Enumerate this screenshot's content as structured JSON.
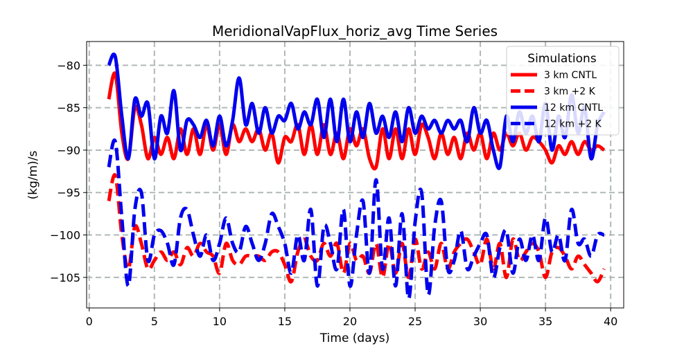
{
  "chart_data": {
    "type": "line",
    "title": "MeridionalVapFlux_horiz_avg Time Series",
    "xlabel": "Time (days)",
    "ylabel": "(kg/m)/s",
    "xlim": [
      -0.2,
      41.0
    ],
    "ylim": [
      -108.6,
      -77.2
    ],
    "xticks": [
      0,
      5,
      10,
      15,
      20,
      25,
      30,
      35,
      40
    ],
    "yticks": [
      -80,
      -85,
      -90,
      -95,
      -100,
      -105
    ],
    "grid": true,
    "legend": {
      "title": "Simulations",
      "placement": "top-right"
    },
    "series": [
      {
        "name": "3 km CNTL",
        "color": "#ff0000",
        "dash": "solid",
        "x": [
          1.5,
          2.0,
          2.5,
          3.0,
          3.5,
          4.0,
          4.5,
          5.0,
          5.5,
          6.0,
          6.5,
          7.0,
          7.5,
          8.0,
          8.5,
          9.0,
          9.5,
          10.0,
          10.5,
          11.0,
          11.5,
          12.0,
          12.5,
          13.0,
          13.5,
          14.0,
          14.5,
          15.0,
          15.5,
          16.0,
          16.5,
          17.0,
          17.5,
          18.0,
          18.5,
          19.0,
          19.5,
          20.0,
          20.5,
          21.0,
          21.5,
          22.0,
          22.5,
          23.0,
          23.5,
          24.0,
          24.5,
          25.0,
          25.5,
          26.0,
          26.5,
          27.0,
          27.5,
          28.0,
          28.5,
          29.0,
          29.5,
          30.0,
          30.5,
          31.0,
          31.5,
          32.0,
          32.5,
          33.0,
          33.5,
          34.0,
          34.5,
          35.0,
          35.5,
          36.0,
          36.5,
          37.0,
          37.5,
          38.0,
          38.5,
          39.0,
          39.5
        ],
        "y": [
          -84,
          -81,
          -88,
          -91,
          -85,
          -87,
          -91,
          -88.5,
          -90.5,
          -88.5,
          -91,
          -87.5,
          -90.5,
          -87.5,
          -90.5,
          -87,
          -90,
          -87,
          -90.5,
          -87,
          -89,
          -87.5,
          -89,
          -87.5,
          -90,
          -88,
          -91.5,
          -88.5,
          -89,
          -87,
          -90.5,
          -87,
          -90.5,
          -87,
          -90.5,
          -88,
          -91,
          -87.5,
          -89.5,
          -87.5,
          -91,
          -92,
          -87.5,
          -91,
          -87.5,
          -91,
          -87.5,
          -90.5,
          -87,
          -88.5,
          -91,
          -88,
          -90.5,
          -88.5,
          -91,
          -88,
          -90,
          -88,
          -91,
          -88,
          -90,
          -88,
          -89.5,
          -88,
          -90,
          -88.5,
          -89,
          -90,
          -91.5,
          -89.5,
          -90.5,
          -89,
          -90.5,
          -89,
          -90,
          -89.5,
          -90
        ]
      },
      {
        "name": "3 km +2 K",
        "color": "#ff0000",
        "dash": "dashed",
        "x": [
          1.5,
          2.0,
          2.5,
          3.0,
          3.5,
          4.0,
          4.5,
          5.0,
          5.5,
          6.0,
          6.5,
          7.0,
          7.5,
          8.0,
          8.5,
          9.0,
          9.5,
          10.0,
          10.5,
          11.0,
          11.5,
          12.0,
          12.5,
          13.0,
          13.5,
          14.0,
          14.5,
          15.0,
          15.5,
          16.0,
          16.5,
          17.0,
          17.5,
          18.0,
          18.5,
          19.0,
          19.5,
          20.0,
          20.5,
          21.0,
          21.5,
          22.0,
          22.5,
          23.0,
          23.5,
          24.0,
          24.5,
          25.0,
          25.5,
          26.0,
          26.5,
          27.0,
          27.5,
          28.0,
          28.5,
          29.0,
          29.5,
          30.0,
          30.5,
          31.0,
          31.5,
          32.0,
          32.5,
          33.0,
          33.5,
          34.0,
          34.5,
          35.0,
          35.5,
          36.0,
          36.5,
          37.0,
          37.5,
          38.0,
          38.5,
          39.0,
          39.5
        ],
        "y": [
          -96,
          -93,
          -100,
          -104,
          -99,
          -101,
          -104,
          -103,
          -102,
          -103,
          -102,
          -103.5,
          -101.5,
          -102.5,
          -101,
          -102,
          -102.5,
          -104.5,
          -101,
          -103,
          -103.5,
          -102.5,
          -102.5,
          -102.5,
          -103,
          -102,
          -102,
          -103.5,
          -105.5,
          -102,
          -100.5,
          -102.5,
          -103,
          -101,
          -102.5,
          -101,
          -104.5,
          -101,
          -103,
          -102.5,
          -104.5,
          -101,
          -105,
          -101,
          -104.5,
          -101,
          -105,
          -100.5,
          -104,
          -102,
          -104,
          -101,
          -104,
          -102,
          -101,
          -100.5,
          -102,
          -103.5,
          -100.5,
          -104,
          -101,
          -105,
          -100.5,
          -103,
          -102,
          -101,
          -102,
          -105,
          -102,
          -101.5,
          -102.5,
          -104,
          -102.5,
          -103.5,
          -104.5,
          -105.5,
          -104
        ]
      },
      {
        "name": "12 km CNTL",
        "color": "#0000ee",
        "dash": "solid",
        "x": [
          1.5,
          2.0,
          2.5,
          3.0,
          3.5,
          4.0,
          4.5,
          5.0,
          5.5,
          6.0,
          6.5,
          7.0,
          7.5,
          8.0,
          8.5,
          9.0,
          9.5,
          10.0,
          10.5,
          11.0,
          11.5,
          12.0,
          12.5,
          13.0,
          13.5,
          14.0,
          14.5,
          15.0,
          15.5,
          16.0,
          16.5,
          17.0,
          17.5,
          18.0,
          18.5,
          19.0,
          19.5,
          20.0,
          20.5,
          21.0,
          21.5,
          22.0,
          22.5,
          23.0,
          23.5,
          24.0,
          24.5,
          25.0,
          25.5,
          26.0,
          26.5,
          27.0,
          27.5,
          28.0,
          28.5,
          29.0,
          29.5,
          30.0,
          30.5,
          31.0,
          31.5,
          32.0,
          32.5,
          33.0,
          33.5,
          34.0,
          34.5,
          35.0,
          35.5,
          36.0,
          36.5,
          37.0,
          37.5,
          38.0,
          38.5,
          39.0,
          39.5
        ],
        "y": [
          -80,
          -79,
          -86,
          -91,
          -84,
          -86,
          -84.5,
          -91,
          -86,
          -88,
          -83,
          -90,
          -86.5,
          -87,
          -88.5,
          -86.5,
          -89.5,
          -86,
          -89.5,
          -86.5,
          -81.5,
          -87,
          -84.5,
          -88,
          -85,
          -88,
          -86,
          -86.5,
          -84.5,
          -87.5,
          -85.5,
          -87,
          -84,
          -88.5,
          -84,
          -89,
          -84,
          -89,
          -85.5,
          -88.5,
          -84.5,
          -88,
          -86,
          -88.5,
          -85.5,
          -89,
          -85,
          -88,
          -86,
          -87.5,
          -86.5,
          -88,
          -86.5,
          -87.5,
          -86.5,
          -89,
          -85,
          -88,
          -86.5,
          -90,
          -92,
          -86,
          -89,
          -85.5,
          -88,
          -86,
          -89,
          -84.5,
          -90,
          -86,
          -88.5,
          -83.5,
          -88,
          -85,
          -91,
          -87,
          -85.5
        ]
      },
      {
        "name": "12 km +2 K",
        "color": "#0000ee",
        "dash": "dashed",
        "x": [
          1.5,
          2.0,
          2.5,
          3.0,
          3.5,
          4.0,
          4.5,
          5.0,
          5.5,
          6.0,
          6.5,
          7.0,
          7.5,
          8.0,
          8.5,
          9.0,
          9.5,
          10.0,
          10.5,
          11.0,
          11.5,
          12.0,
          12.5,
          13.0,
          13.5,
          14.0,
          14.5,
          15.0,
          15.5,
          16.0,
          16.5,
          17.0,
          17.5,
          18.0,
          18.5,
          19.0,
          19.5,
          20.0,
          20.5,
          21.0,
          21.5,
          22.0,
          22.5,
          23.0,
          23.5,
          24.0,
          24.5,
          25.0,
          25.5,
          26.0,
          26.5,
          27.0,
          27.5,
          28.0,
          28.5,
          29.0,
          29.5,
          30.0,
          30.5,
          31.0,
          31.5,
          32.0,
          32.5,
          33.0,
          33.5,
          34.0,
          34.5,
          35.0,
          35.5,
          36.0,
          36.5,
          37.0,
          37.5,
          38.0,
          38.5,
          39.0,
          39.5
        ],
        "y": [
          -92,
          -89,
          -98,
          -106,
          -97,
          -95,
          -103,
          -100,
          -99.5,
          -101,
          -103.5,
          -98,
          -97,
          -100,
          -102.5,
          -100,
          -103,
          -101,
          -98,
          -101,
          -102,
          -99,
          -101,
          -103,
          -101,
          -97.5,
          -99,
          -101,
          -104.5,
          -100,
          -103,
          -97,
          -106,
          -99,
          -101,
          -104,
          -97,
          -106,
          -100,
          -96,
          -104.5,
          -93.5,
          -104,
          -98,
          -106,
          -97.5,
          -107.5,
          -98.5,
          -95,
          -107,
          -99,
          -96,
          -104,
          -103,
          -99.5,
          -104,
          -102.5,
          -101,
          -100,
          -105,
          -101.5,
          -99.5,
          -104.5,
          -100.5,
          -103,
          -100,
          -103,
          -98,
          -102,
          -100,
          -103,
          -97,
          -101,
          -100.5,
          -102.5,
          -100,
          -100
        ]
      }
    ]
  }
}
